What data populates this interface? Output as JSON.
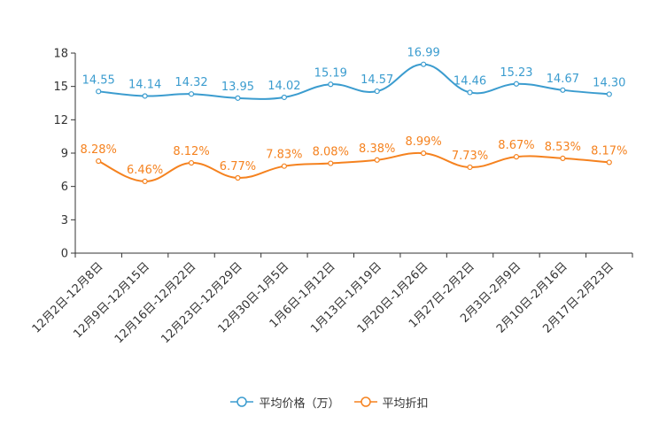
{
  "chart_data": {
    "type": "line",
    "title": "",
    "xlabel": "",
    "ylabel": "",
    "ylim": [
      0,
      18
    ],
    "yticks": [
      0,
      3,
      6,
      9,
      12,
      15,
      18
    ],
    "categories": [
      "12月2日-12月8日",
      "12月9日-12月15日",
      "12月16日-12月22日",
      "12月23日-12月29日",
      "12月30日-1月5日",
      "1月6日-1月12日",
      "1月13日-1月19日",
      "1月20日-1月26日",
      "1月27日-2月2日",
      "2月3日-2月9日",
      "2月10日-2月16日",
      "2月17日-2月23日"
    ],
    "series": [
      {
        "name": "平均价格（万）",
        "color": "#3b9ccf",
        "values": [
          14.55,
          14.14,
          14.32,
          13.95,
          14.02,
          15.19,
          14.57,
          16.99,
          14.46,
          15.23,
          14.67,
          14.3
        ],
        "labels": [
          "14.55",
          "14.14",
          "14.32",
          "13.95",
          "14.02",
          "15.19",
          "14.57",
          "16.99",
          "14.46",
          "15.23",
          "14.67",
          "14.30"
        ]
      },
      {
        "name": "平均折扣",
        "color": "#f5821f",
        "values": [
          8.28,
          6.46,
          8.12,
          6.77,
          7.83,
          8.08,
          8.38,
          8.99,
          7.73,
          8.67,
          8.53,
          8.17
        ],
        "labels": [
          "8.28%",
          "6.46%",
          "8.12%",
          "6.77%",
          "7.83%",
          "8.08%",
          "8.38%",
          "8.99%",
          "7.73%",
          "8.67%",
          "8.53%",
          "8.17%"
        ]
      }
    ],
    "legend": "bottom-center"
  }
}
